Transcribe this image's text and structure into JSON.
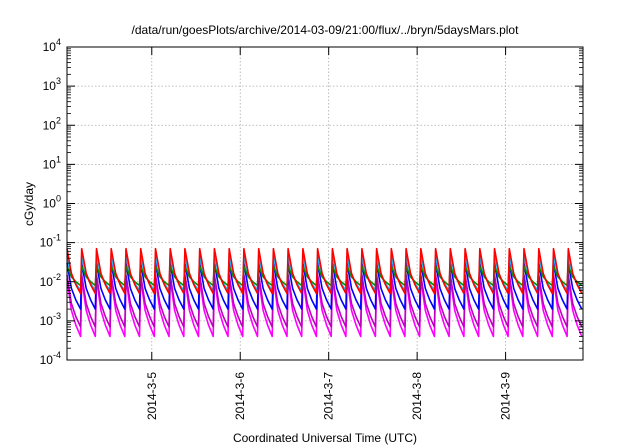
{
  "chart_data": {
    "type": "line",
    "title": "/data/run/goesPlots/archive/2014-03-09/21:00/flux/../bryn/5daysMars.plot",
    "xlabel": "Coordinated Universal Time (UTC)",
    "ylabel": "cGy/day",
    "y_scale": "log",
    "ylim": [
      0.0001,
      10000
    ],
    "y_ticks": [
      {
        "base": "10",
        "exp": "-4",
        "value": 0.0001
      },
      {
        "base": "10",
        "exp": "-3",
        "value": 0.001
      },
      {
        "base": "10",
        "exp": "-2",
        "value": 0.01
      },
      {
        "base": "10",
        "exp": "-1",
        "value": 0.1
      },
      {
        "base": "10",
        "exp": "0",
        "value": 1
      },
      {
        "base": "10",
        "exp": "1",
        "value": 10
      },
      {
        "base": "10",
        "exp": "2",
        "value": 100
      },
      {
        "base": "10",
        "exp": "3",
        "value": 1000
      },
      {
        "base": "10",
        "exp": "4",
        "value": 10000
      }
    ],
    "xlim": [
      "2014-03-04T01:00",
      "2014-03-09T21:00"
    ],
    "x_ticks": [
      {
        "label": "2014-3-5",
        "value": "2014-03-05T00:00"
      },
      {
        "label": "2014-3-6",
        "value": "2014-03-06T00:00"
      },
      {
        "label": "2014-3-7",
        "value": "2014-03-07T00:00"
      },
      {
        "label": "2014-3-8",
        "value": "2014-03-08T00:00"
      },
      {
        "label": "2014-3-9",
        "value": "2014-03-09T00:00"
      }
    ],
    "grid": true,
    "legend": "none",
    "cycle_hours": 4,
    "series": [
      {
        "color": "#ff00ff",
        "peak": 0.012,
        "trough": 0.0004
      },
      {
        "color": "#c000c0",
        "peak": 0.015,
        "trough": 0.0007
      },
      {
        "color": "#0000ff",
        "peak": 0.03,
        "trough": 0.002
      },
      {
        "color": "#00c0ff",
        "peak": 0.045,
        "trough": 0.006
      },
      {
        "color": "#009000",
        "peak": 0.025,
        "trough": 0.008
      },
      {
        "color": "#ff0000",
        "peak": 0.07,
        "trough": 0.005
      }
    ]
  }
}
